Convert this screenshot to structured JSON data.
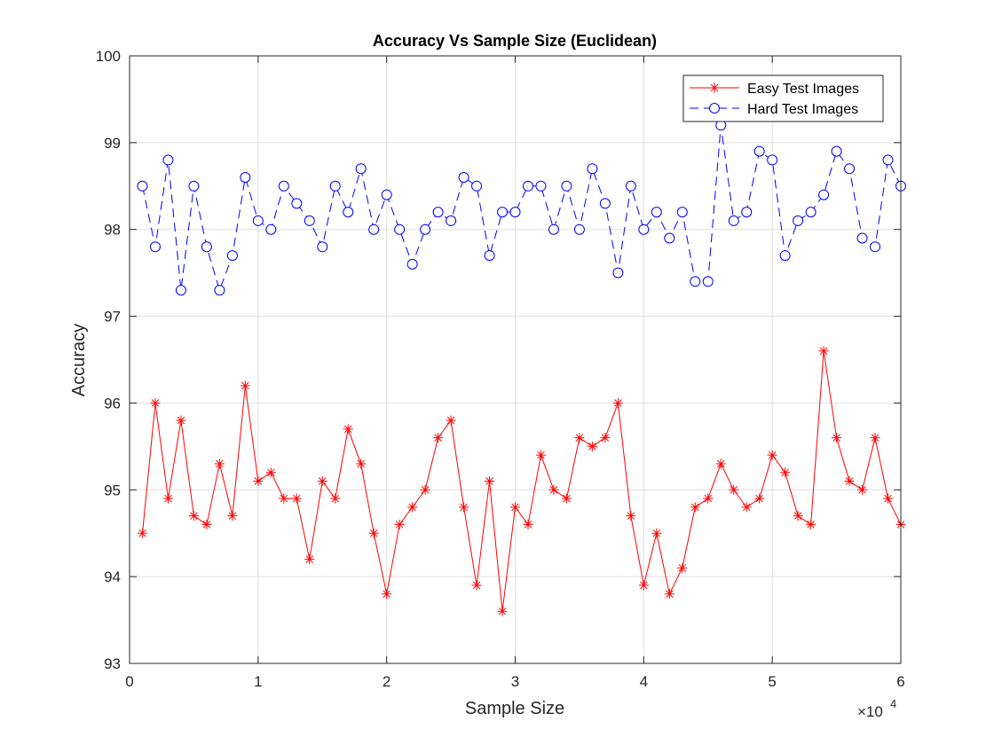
{
  "chart_data": {
    "type": "line",
    "title": "Accuracy Vs Sample Size (Euclidean)",
    "xlabel": "Sample Size",
    "ylabel": "Accuracy",
    "x_multiplier_label": "×10",
    "x_multiplier_exponent": "4",
    "xlim": [
      0,
      60000
    ],
    "ylim": [
      93,
      100
    ],
    "x_ticks": [
      0,
      10000,
      20000,
      30000,
      40000,
      50000,
      60000
    ],
    "x_tick_labels": [
      "0",
      "1",
      "2",
      "3",
      "4",
      "5",
      "6"
    ],
    "y_ticks": [
      93,
      94,
      95,
      96,
      97,
      98,
      99,
      100
    ],
    "y_tick_labels": [
      "93",
      "94",
      "95",
      "96",
      "97",
      "98",
      "99",
      "100"
    ],
    "grid": true,
    "legend_position": "top-right",
    "x": [
      1000,
      2000,
      3000,
      4000,
      5000,
      6000,
      7000,
      8000,
      9000,
      10000,
      11000,
      12000,
      13000,
      14000,
      15000,
      16000,
      17000,
      18000,
      19000,
      20000,
      21000,
      22000,
      23000,
      24000,
      25000,
      26000,
      27000,
      28000,
      29000,
      30000,
      31000,
      32000,
      33000,
      34000,
      35000,
      36000,
      37000,
      38000,
      39000,
      40000,
      41000,
      42000,
      43000,
      44000,
      45000,
      46000,
      47000,
      48000,
      49000,
      50000,
      51000,
      52000,
      53000,
      54000,
      55000,
      56000,
      57000,
      58000,
      59000,
      60000
    ],
    "series": [
      {
        "name": "Easy Test Images",
        "color": "#ff0000",
        "line_style": "solid",
        "marker": "asterisk",
        "values": [
          94.5,
          96.0,
          94.9,
          95.8,
          94.7,
          94.6,
          95.3,
          94.7,
          96.2,
          95.1,
          95.2,
          94.9,
          94.9,
          94.2,
          95.1,
          94.9,
          95.7,
          95.3,
          94.5,
          93.8,
          94.6,
          94.8,
          95.0,
          95.6,
          95.8,
          94.8,
          93.9,
          95.1,
          93.6,
          94.8,
          94.6,
          95.4,
          95.0,
          94.9,
          95.6,
          95.5,
          95.6,
          96.0,
          94.7,
          93.9,
          94.5,
          93.8,
          94.1,
          94.8,
          94.9,
          95.3,
          95.0,
          94.8,
          94.9,
          95.4,
          95.2,
          94.7,
          94.6,
          96.6,
          95.6,
          95.1,
          95.0,
          95.6,
          94.9,
          94.6
        ]
      },
      {
        "name": "Hard Test Images",
        "color": "#0000ff",
        "line_style": "dashed",
        "marker": "circle",
        "values": [
          98.5,
          97.8,
          98.8,
          97.3,
          98.5,
          97.8,
          97.3,
          97.7,
          98.6,
          98.1,
          98.0,
          98.5,
          98.3,
          98.1,
          97.8,
          98.5,
          98.2,
          98.7,
          98.0,
          98.4,
          98.0,
          97.6,
          98.0,
          98.2,
          98.1,
          98.6,
          98.5,
          97.7,
          98.2,
          98.2,
          98.5,
          98.5,
          98.0,
          98.5,
          98.0,
          98.7,
          98.3,
          97.5,
          98.5,
          98.0,
          98.2,
          97.9,
          98.2,
          97.4,
          97.4,
          99.2,
          98.1,
          98.2,
          98.9,
          98.8,
          97.7,
          98.1,
          98.2,
          98.4,
          98.9,
          98.7,
          97.9,
          97.8,
          98.8,
          98.5
        ]
      }
    ]
  }
}
